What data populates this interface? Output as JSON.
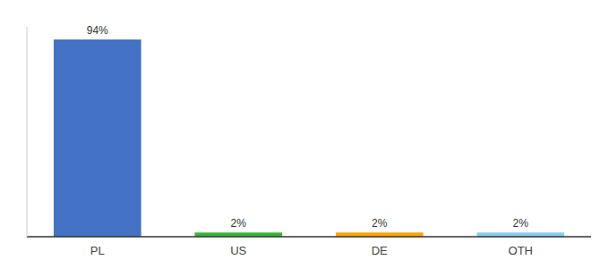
{
  "chart_data": {
    "type": "bar",
    "categories": [
      "PL",
      "US",
      "DE",
      "OTH"
    ],
    "values": [
      94,
      2,
      2,
      2
    ],
    "value_labels": [
      "94%",
      "2%",
      "2%",
      "2%"
    ],
    "colors": [
      "#4472c4",
      "#36b536",
      "#ffa500",
      "#87ceeb"
    ],
    "ylim": [
      0,
      100
    ],
    "grid": false,
    "data_labels": true,
    "tick_labels": "x"
  }
}
